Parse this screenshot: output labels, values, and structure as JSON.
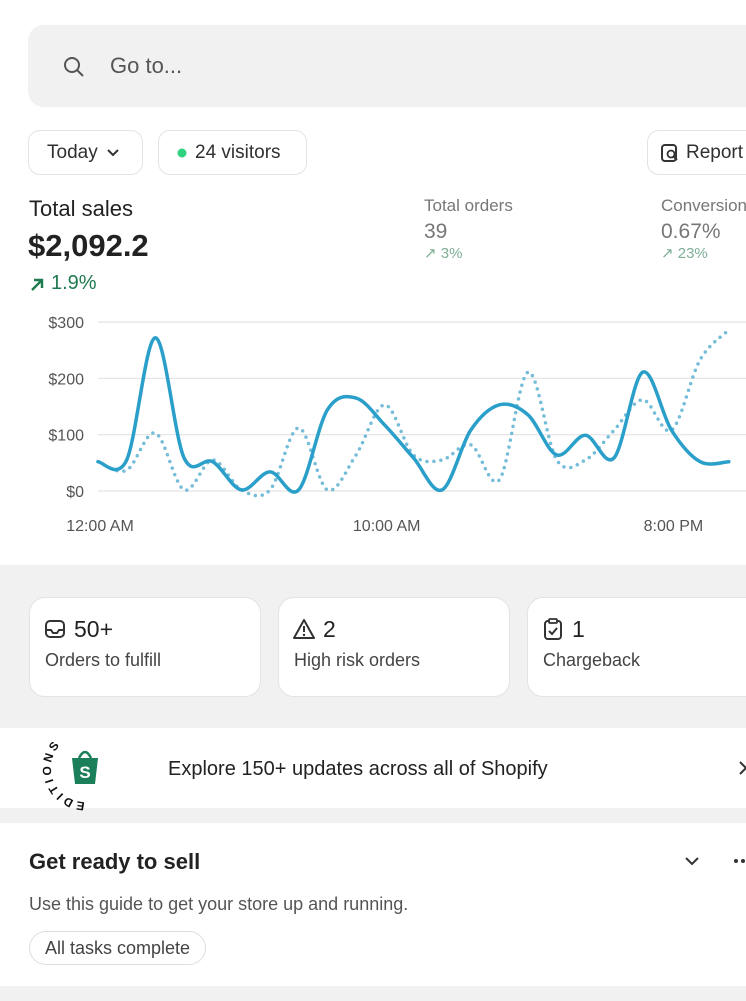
{
  "search": {
    "placeholder": "Go to..."
  },
  "filters": {
    "date": "Today",
    "visitors": "24 visitors",
    "report": "Report"
  },
  "metrics": [
    {
      "label": "Total sales",
      "value": "$2,092.2",
      "change": "1.9%"
    },
    {
      "label": "Total orders",
      "value": "39",
      "change": "3%"
    },
    {
      "label": "Conversion rate",
      "value": "0.67%",
      "change": "23%"
    }
  ],
  "chart_data": {
    "type": "line",
    "x": [
      0,
      1,
      2,
      3,
      4,
      5,
      6,
      7,
      8,
      9,
      10,
      11,
      12,
      13,
      14,
      15,
      16,
      17,
      18,
      19,
      20,
      21,
      22
    ],
    "xlim": [
      0,
      22.6
    ],
    "xticks": [
      {
        "value": 0,
        "label": "12:00 AM"
      },
      {
        "value": 10,
        "label": "10:00 AM"
      },
      {
        "value": 20,
        "label": "8:00 PM"
      }
    ],
    "ylim": [
      0,
      300
    ],
    "yticks": [
      {
        "value": 0,
        "label": "$0"
      },
      {
        "value": 100,
        "label": "$100"
      },
      {
        "value": 200,
        "label": "$200"
      },
      {
        "value": 300,
        "label": "$300"
      }
    ],
    "grid": true,
    "series": [
      {
        "color": "#2a9fc9",
        "style": "solid",
        "values": [
          52,
          55,
          272,
          59,
          52,
          2,
          34,
          2,
          144,
          165,
          117,
          59,
          2,
          108,
          153,
          135,
          64,
          99,
          59,
          211,
          108,
          52,
          52
        ]
      },
      {
        "color": "#74bcd8",
        "style": "dotted",
        "values": [
          52,
          37,
          103,
          2,
          55,
          2,
          2,
          112,
          2,
          64,
          153,
          64,
          55,
          82,
          20,
          211,
          55,
          55,
          108,
          162,
          108,
          233,
          286
        ]
      }
    ]
  },
  "tasks": [
    {
      "count": "50+",
      "label": "Orders to fulfill"
    },
    {
      "count": "2",
      "label": "High risk orders"
    },
    {
      "count": "1",
      "label": "Chargeback"
    }
  ],
  "banner": {
    "badge": "EDITIONS",
    "text": "Explore 150+ updates across all of Shopify"
  },
  "guide": {
    "title": "Get ready to sell",
    "description": "Use this guide to get your store up and running.",
    "status": "All tasks complete"
  }
}
